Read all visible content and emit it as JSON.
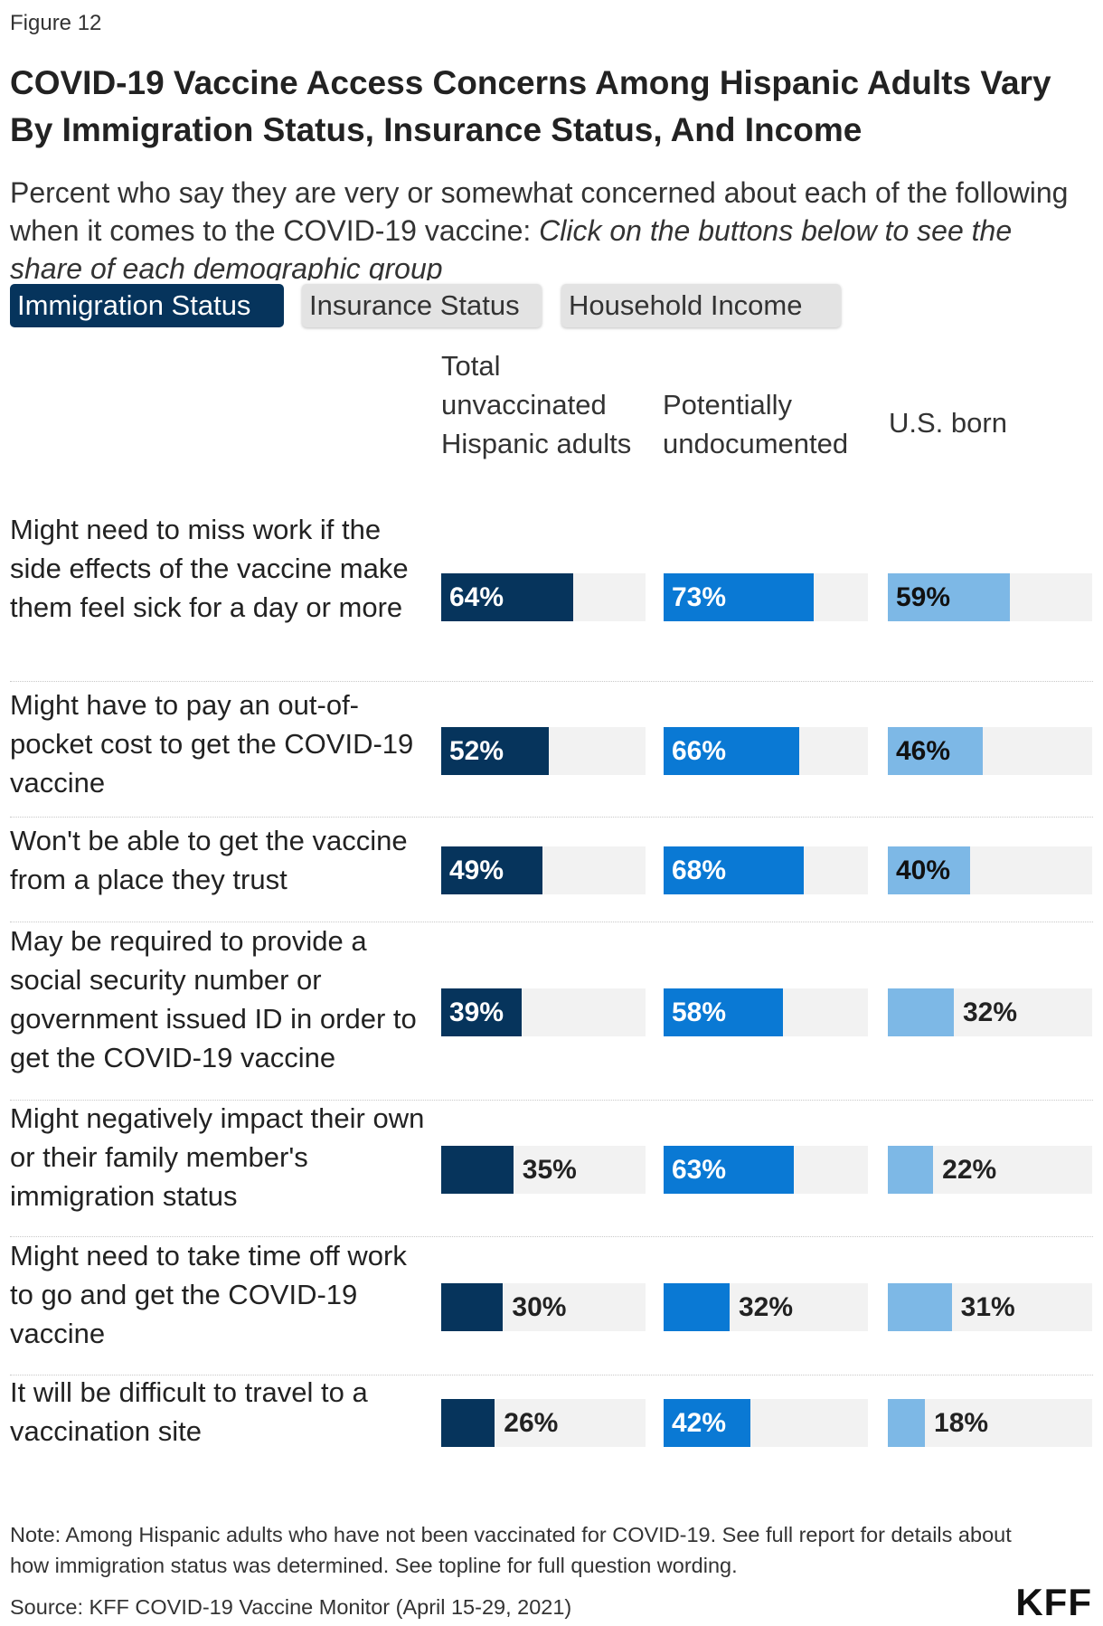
{
  "figure_label": "Figure 12",
  "title": "COVID-19 Vaccine Access Concerns Among Hispanic Adults Vary By Immigration Status, Insurance Status, And Income",
  "subtitle": {
    "text": "Percent who say they are very or somewhat concerned about each of the following when it comes to the COVID-19 vaccine:",
    "instruction": "Click on the buttons below to see the share of each demographic group"
  },
  "tabs": [
    {
      "label": "Immigration Status",
      "active": true
    },
    {
      "label": "Insurance Status",
      "active": false
    },
    {
      "label": "Household Income",
      "active": false
    }
  ],
  "colors": {
    "series_total": "#06345c",
    "series_undocumented": "#0a79d4",
    "series_us_born": "#7db8e6",
    "track": "#f2f2f2"
  },
  "chart_data": {
    "type": "bar",
    "orientation": "horizontal",
    "xlim": [
      0,
      100
    ],
    "value_suffix": "%",
    "categories": [
      "Might need to miss work if the side effects of the vaccine make them feel sick for a day or more",
      "Might have to pay an out-of-pocket cost to get the COVID-19 vaccine",
      "Won't be able to get the vaccine from a place they trust",
      "May be required to provide a social security number or government issued ID in order to get the COVID-19 vaccine",
      "Might negatively impact their own or their family member's immigration status",
      "Might need to take time off work to go and get the COVID-19 vaccine",
      "It will be difficult to travel to a vaccination site"
    ],
    "series": [
      {
        "name": "Total unvaccinated Hispanic adults",
        "values": [
          64,
          52,
          49,
          39,
          35,
          30,
          26
        ]
      },
      {
        "name": "Potentially undocumented",
        "values": [
          73,
          66,
          68,
          58,
          63,
          32,
          42
        ]
      },
      {
        "name": "U.S. born",
        "values": [
          59,
          46,
          40,
          32,
          22,
          31,
          18
        ]
      }
    ]
  },
  "footer": {
    "note": "Note: Among Hispanic adults who have not been vaccinated for COVID-19. See full report for details about how immigration status was determined. See topline for full question wording.",
    "source": "Source: KFF COVID-19 Vaccine Monitor (April 15-29, 2021)",
    "logo": "KFF"
  }
}
